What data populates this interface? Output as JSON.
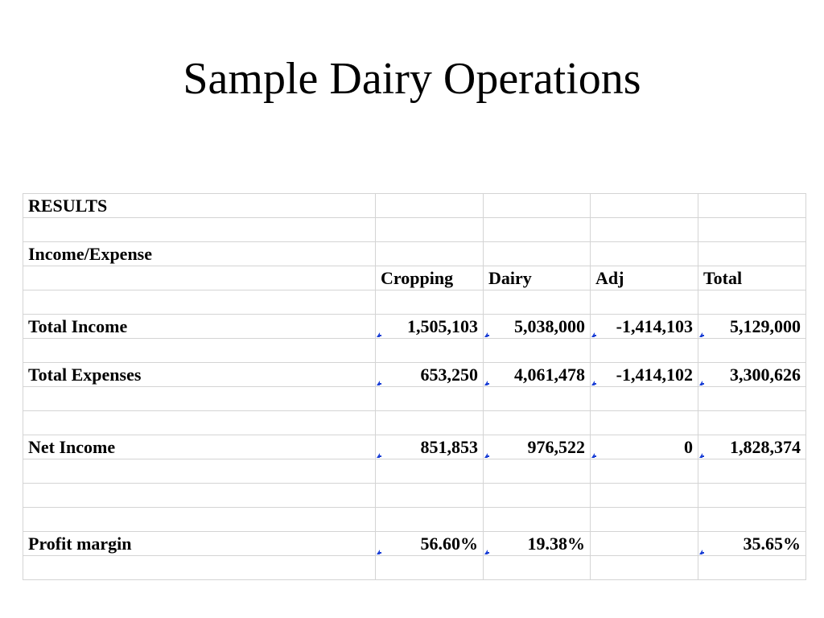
{
  "title": "Sample Dairy Operations",
  "table": {
    "section_label": "RESULTS",
    "subsection_label": "Income/Expense",
    "columns": [
      "Cropping",
      "Dairy",
      "Adj",
      "Total"
    ],
    "rows": {
      "total_income": {
        "label": "Total Income",
        "values": [
          "1,505,103",
          "5,038,000",
          "-1,414,103",
          "5,129,000"
        ]
      },
      "total_expenses": {
        "label": "Total Expenses",
        "values": [
          "653,250",
          "4,061,478",
          "-1,414,102",
          "3,300,626"
        ]
      },
      "net_income": {
        "label": "Net Income",
        "values": [
          "851,853",
          "976,522",
          "0",
          "1,828,374"
        ]
      },
      "profit_margin": {
        "label": "Profit margin",
        "values": [
          "56.60%",
          "19.38%",
          "",
          "35.65%"
        ]
      }
    },
    "colors": {
      "gridline": "#d4d4d4",
      "comment_marker": "#1a3fd6"
    }
  }
}
